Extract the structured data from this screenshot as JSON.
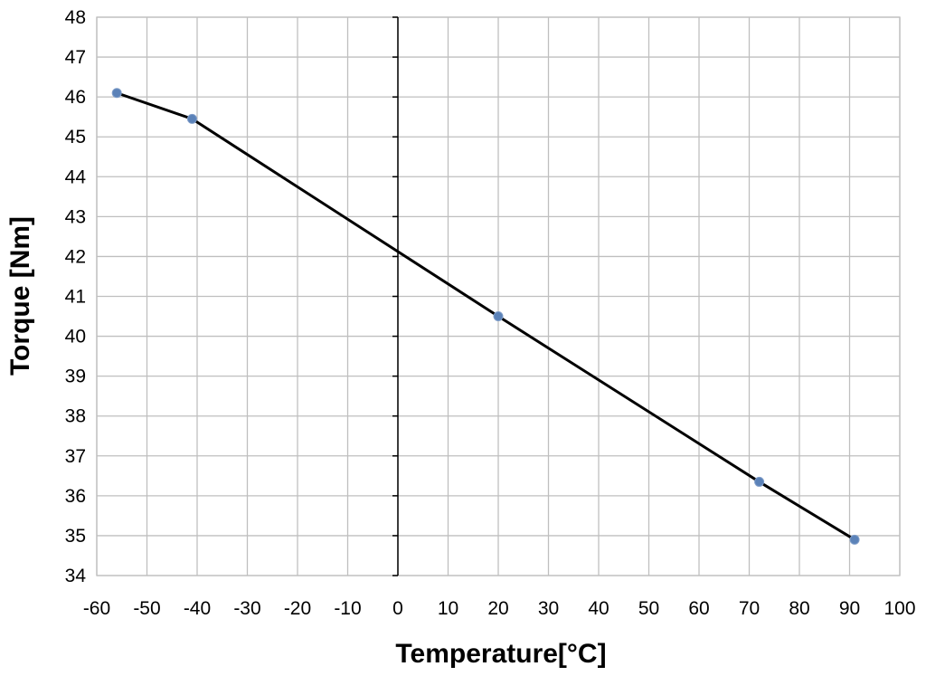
{
  "chart_data": {
    "type": "line",
    "title": "",
    "xlabel": "Temperature[°C]",
    "ylabel": "Torque [Nm]",
    "xlim": [
      -60,
      100
    ],
    "ylim": [
      34,
      48
    ],
    "xticks": [
      -60,
      -50,
      -40,
      -30,
      -20,
      -10,
      0,
      10,
      20,
      30,
      40,
      50,
      60,
      70,
      80,
      90,
      100
    ],
    "yticks": [
      34,
      35,
      36,
      37,
      38,
      39,
      40,
      41,
      42,
      43,
      44,
      45,
      46,
      47,
      48
    ],
    "grid": true,
    "series": [
      {
        "x": [
          -56,
          -41,
          20,
          72,
          91
        ],
        "y": [
          46.1,
          45.45,
          40.5,
          36.35,
          34.9
        ]
      }
    ],
    "colors": {
      "line": "#000000",
      "marker": "#5b82b8",
      "grid": "#bfbfbf",
      "axis": "#000000"
    }
  }
}
